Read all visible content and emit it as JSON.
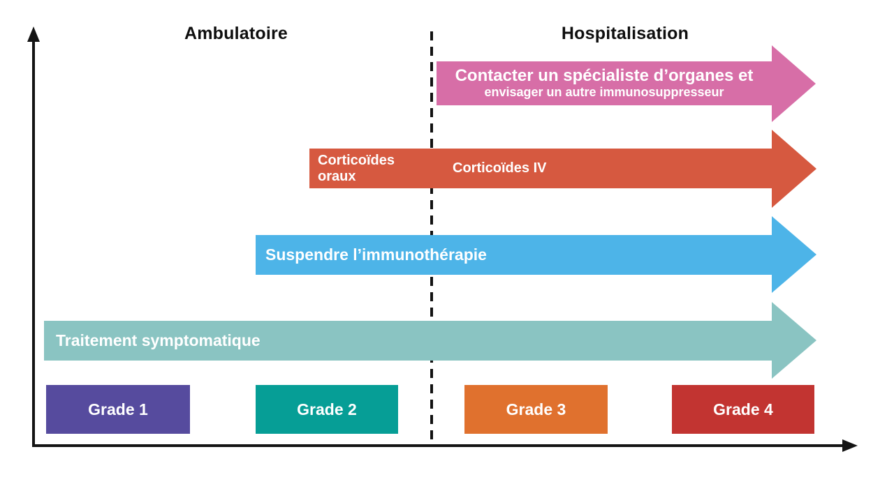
{
  "sections": [
    {
      "label": "Ambulatoire"
    },
    {
      "label": "Hospitalisation"
    }
  ],
  "arrows": [
    {
      "name": "contact-specialist",
      "color": "#d76ea7",
      "line1": "Contacter un spécialiste d’organes et",
      "line2": "envisager un autre immunosuppresseur"
    },
    {
      "name": "corticoides",
      "color": "#d65940",
      "left_label": "Corticoïdes\noraux",
      "right_label": "Corticoïdes IV"
    },
    {
      "name": "suspend-immunotherapy",
      "color": "#4db4e8",
      "label": "Suspendre l’immunothérapie"
    },
    {
      "name": "symptomatic-treatment",
      "color": "#8ac4c2",
      "label": "Traitement symptomatique"
    }
  ],
  "grades": [
    {
      "label": "Grade 1",
      "color": "#564b9e"
    },
    {
      "label": "Grade 2",
      "color": "#069e96"
    },
    {
      "label": "Grade 3",
      "color": "#e0712e"
    },
    {
      "label": "Grade 4",
      "color": "#c23431"
    }
  ],
  "axes": {
    "color": "#141414"
  }
}
